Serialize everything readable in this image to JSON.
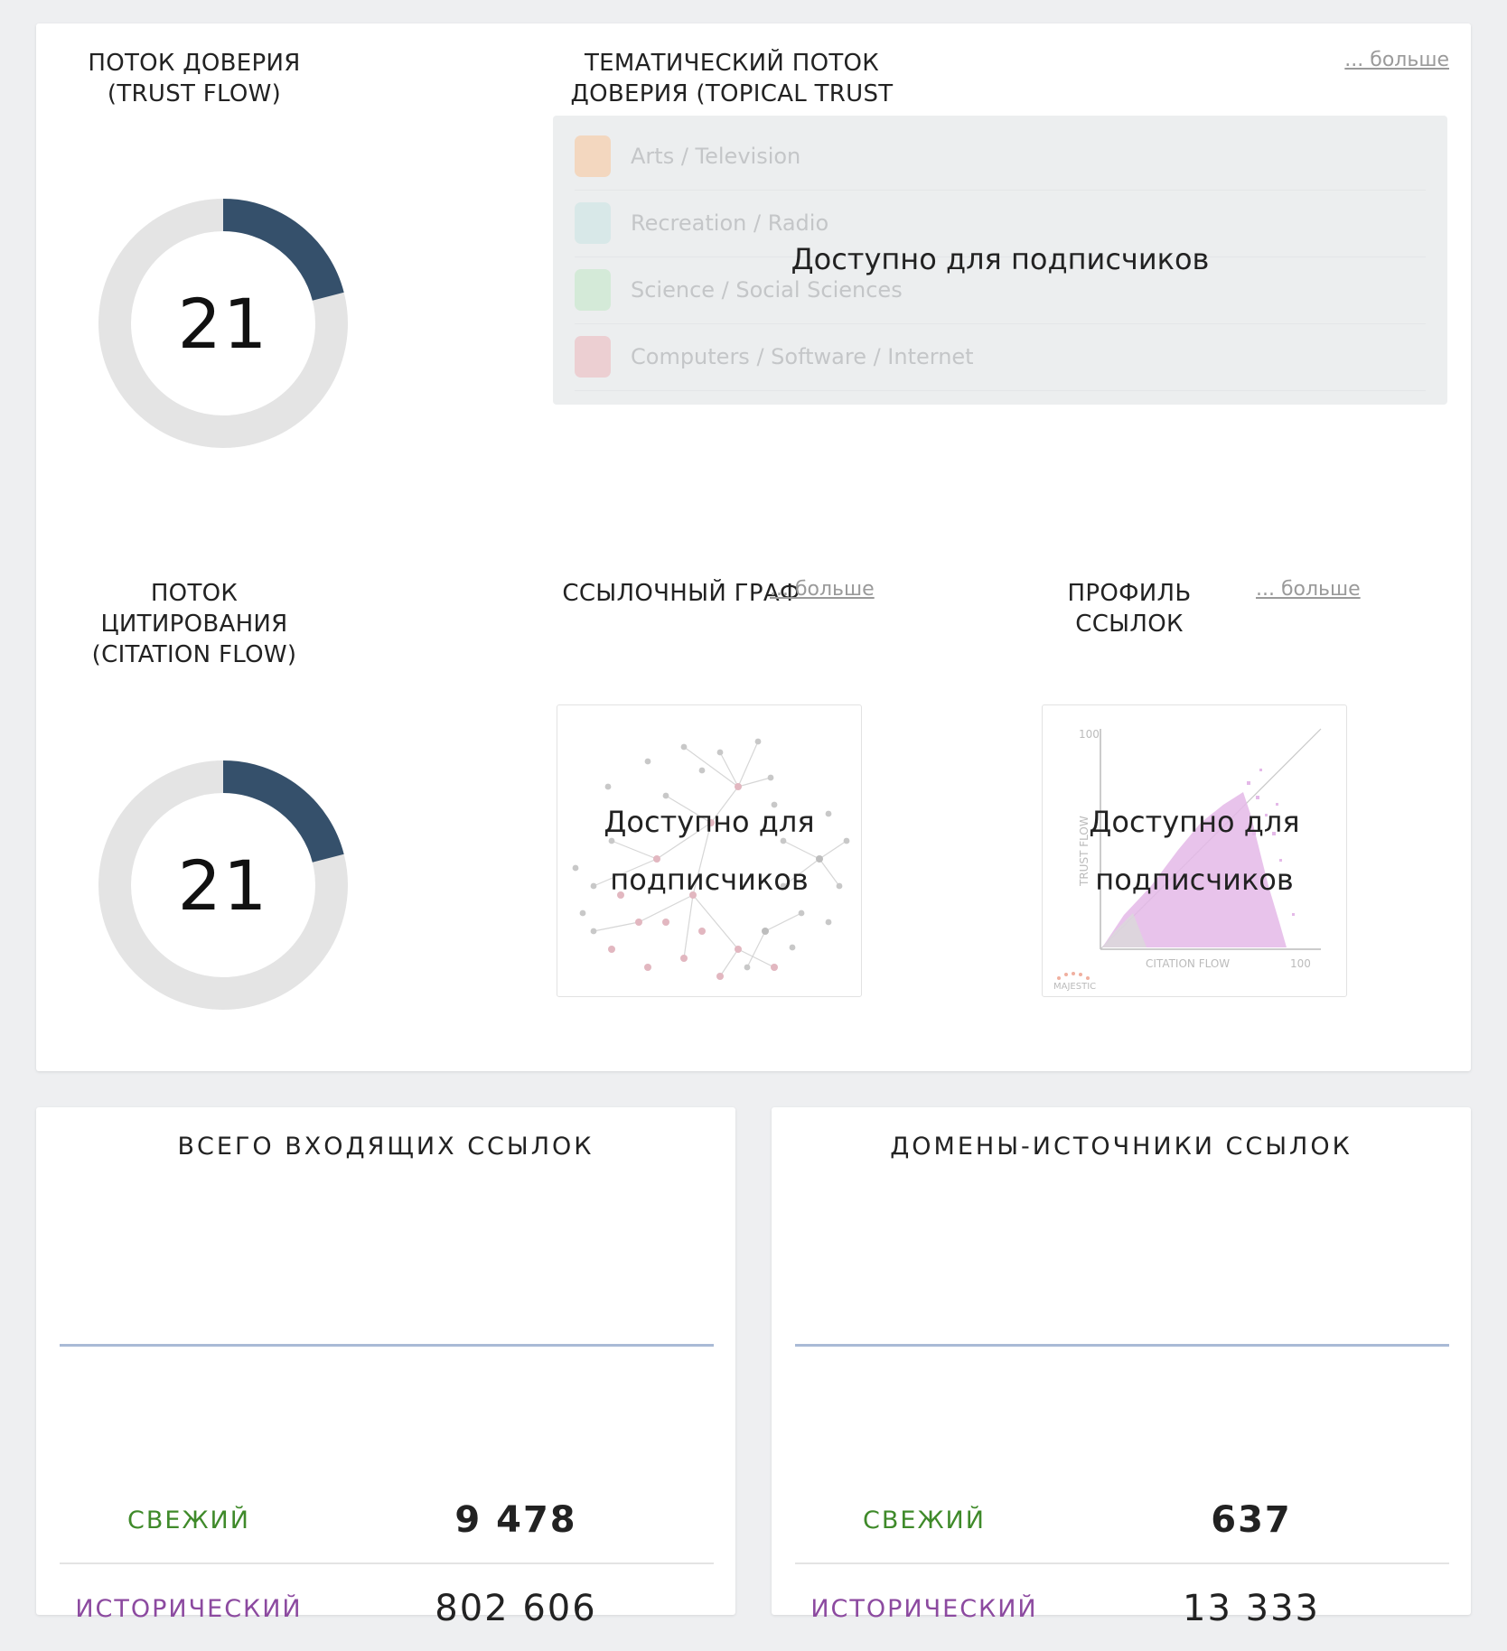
{
  "trust_flow": {
    "title": "ПОТОК ДОВЕРИЯ (TRUST FLOW)",
    "value": "21",
    "score": 21,
    "max": 100,
    "fill_color": "#35506b",
    "track_color": "#e4e4e4"
  },
  "topical_trust": {
    "title": "ТЕМАТИЧЕСКИЙ ПОТОК ДОВЕРИЯ (TOPICAL TRUST",
    "more_label": "... больше",
    "locked_message": "Доступно для подписчиков",
    "topics": [
      {
        "label": "Arts / Television",
        "color": "#f3d7bf"
      },
      {
        "label": "Recreation / Radio",
        "color": "#d8e8e8"
      },
      {
        "label": "Science / Social Sciences",
        "color": "#d4ead8"
      },
      {
        "label": "Computers / Software / Internet",
        "color": "#eccfd2"
      }
    ]
  },
  "citation_flow": {
    "title": "ПОТОК ЦИТИРОВАНИЯ (CITATION FLOW)",
    "value": "21",
    "score": 21,
    "max": 100,
    "fill_color": "#35506b",
    "track_color": "#e4e4e4"
  },
  "link_graph": {
    "title": "ССЫЛОЧНЫЙ ГРАФ",
    "more_label": "... больше",
    "locked_message": "Доступно для подписчиков"
  },
  "link_profile": {
    "title": "ПРОФИЛЬ ССЫЛОК",
    "more_label": "... больше",
    "locked_message": "Доступно для подписчиков",
    "axis_max": "100",
    "y_axis_label": "TRUST FLOW",
    "x_axis_label": "CITATION FLOW",
    "logo_text": "MAJESTIC"
  },
  "backlinks": {
    "title": "ВСЕГО ВХОДЯЩИХ ССЫЛОК",
    "fresh_label": "СВЕЖИЙ",
    "fresh_value": "9 478",
    "historic_label": "ИСТОРИЧЕСКИЙ",
    "historic_value": "802 606"
  },
  "referring_domains": {
    "title": "ДОМЕНЫ-ИСТОЧНИКИ ССЫЛОК",
    "fresh_label": "СВЕЖИЙ",
    "fresh_value": "637",
    "historic_label": "ИСТОРИЧЕСКИЙ",
    "historic_value": "13 333"
  }
}
